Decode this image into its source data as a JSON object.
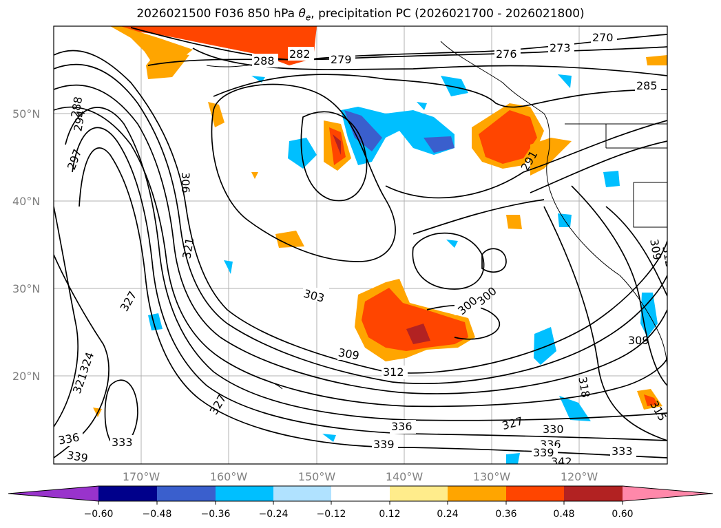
{
  "title": {
    "text_prefix": "2026021500 F036 850 hPa ",
    "theta_symbol": "θ",
    "theta_sub": "e",
    "text_suffix": ", precipitation PC (2026021700 - 2026021800)"
  },
  "map": {
    "lat_labels": [
      "50°N",
      "40°N",
      "30°N",
      "20°N"
    ],
    "lon_labels": [
      "170°W",
      "160°W",
      "150°W",
      "140°W",
      "130°W",
      "120°W"
    ],
    "contour_labels": [
      "270",
      "273",
      "276",
      "279",
      "282",
      "285",
      "288",
      "288",
      "291",
      "294",
      "297",
      "300",
      "300",
      "303",
      "306",
      "309",
      "309",
      "309",
      "312",
      "312",
      "315",
      "318",
      "321",
      "321",
      "324",
      "327",
      "327",
      "327",
      "330",
      "333",
      "333",
      "336",
      "336",
      "336",
      "339",
      "339",
      "339",
      "342"
    ],
    "coastline_color": "#000000",
    "grid_color": "#b0b0b0"
  },
  "colorbar": {
    "ticks": [
      "−0.60",
      "−0.48",
      "−0.36",
      "−0.24",
      "−0.12",
      "0.12",
      "0.24",
      "0.36",
      "0.48",
      "0.60"
    ],
    "colors": [
      "#9933cc",
      "#00008b",
      "#3a5fcd",
      "#00bfff",
      "#b0e2ff",
      "#ffffff",
      "#ffec8b",
      "#ffa500",
      "#ff4500",
      "#b22222",
      "#ff88aa"
    ]
  }
}
